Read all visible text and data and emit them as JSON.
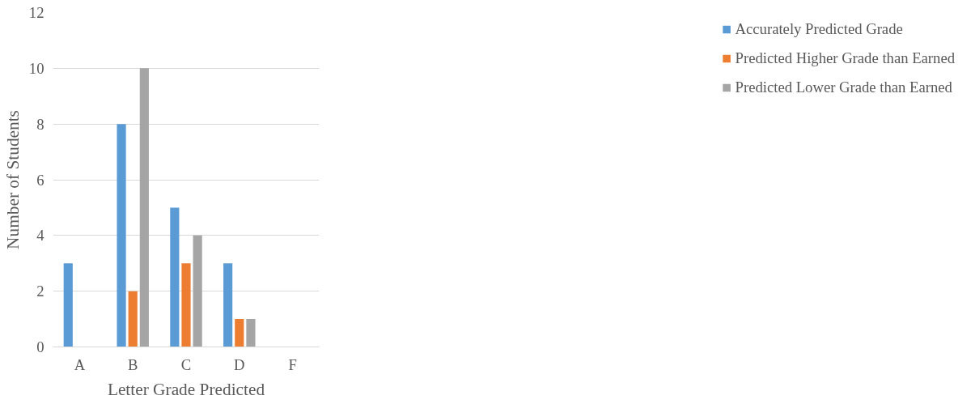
{
  "chart_data": {
    "type": "bar",
    "xlabel": "Letter Grade Predicted",
    "ylabel": "Number of Students",
    "categories": [
      "A",
      "B",
      "C",
      "D",
      "F"
    ],
    "series": [
      {
        "name": "Accurately Predicted Grade",
        "color": "#5b9bd5",
        "values": [
          3,
          8,
          5,
          3,
          0
        ]
      },
      {
        "name": "Predicted Higher Grade than Earned",
        "color": "#ed7d31",
        "values": [
          0,
          2,
          3,
          1,
          0
        ]
      },
      {
        "name": "Predicted Lower Grade than Earned",
        "color": "#a5a5a5",
        "values": [
          0,
          10,
          4,
          1,
          0
        ]
      }
    ],
    "ylim": [
      0,
      12
    ],
    "yticks": [
      0,
      2,
      4,
      6,
      8,
      10,
      12
    ],
    "grid": "y",
    "legend": "right"
  }
}
